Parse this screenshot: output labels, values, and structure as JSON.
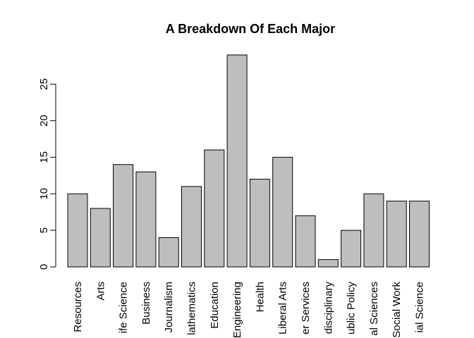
{
  "chart_data": {
    "type": "bar",
    "title": "A Breakdown Of Each Major",
    "xlabel": "",
    "ylabel": "",
    "categories": [
      "Agriculture & Natural Resources",
      "Arts",
      "Biology & Life Science",
      "Business",
      "Communications & Journalism",
      "Computers & Mathematics",
      "Education",
      "Engineering",
      "Health",
      "Humanities & Liberal Arts",
      "Industrial Arts & Consumer Services",
      "Interdisciplinary",
      "Law & Public Policy",
      "Physical Sciences",
      "Psychology & Social Work",
      "Social Science"
    ],
    "visible_labels": [
      "Resources",
      "Arts",
      "ife Science",
      "Business",
      "Journalism",
      "lathematics",
      "Education",
      "Engineering",
      "Health",
      "Liberal Arts",
      "er Services",
      "disciplinary",
      "ublic Policy",
      "al Sciences",
      "Social Work",
      "ial Science"
    ],
    "values": [
      10,
      8,
      14,
      13,
      4,
      11,
      16,
      29,
      12,
      15,
      7,
      1,
      5,
      10,
      9,
      9
    ],
    "ylim": [
      0,
      29
    ],
    "yticks": [
      0,
      5,
      10,
      15,
      20,
      25
    ],
    "bar_color": "#bebebe",
    "grid": false,
    "legend": "none"
  }
}
